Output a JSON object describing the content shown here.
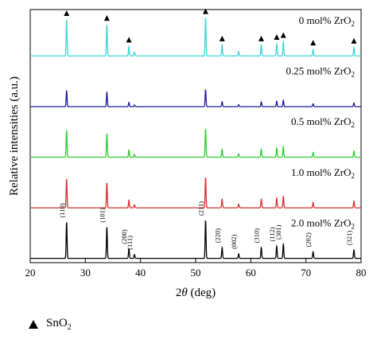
{
  "chart_data": {
    "type": "line",
    "xlabel": "2θ (deg)",
    "ylabel": "Relative intensities (a.u.)",
    "xlim": [
      20,
      80
    ],
    "xticks": [
      20,
      30,
      40,
      50,
      60,
      70,
      80
    ],
    "grid": false,
    "legend": {
      "label": "SnO",
      "label_sub": "2",
      "placement": "bottom-left",
      "marker": "filled triangle"
    },
    "peaks": [
      {
        "x": 26.6,
        "h": 0.95,
        "hkl": "(110)"
      },
      {
        "x": 33.9,
        "h": 0.82,
        "hkl": "(101)"
      },
      {
        "x": 37.9,
        "h": 0.25,
        "hkl": "(200)"
      },
      {
        "x": 38.9,
        "h": 0.1,
        "hkl": "(111)"
      },
      {
        "x": 51.8,
        "h": 1.0,
        "hkl": "(211)"
      },
      {
        "x": 54.8,
        "h": 0.28,
        "hkl": "(220)"
      },
      {
        "x": 57.8,
        "h": 0.12,
        "hkl": "(002)"
      },
      {
        "x": 61.9,
        "h": 0.28,
        "hkl": "(310)"
      },
      {
        "x": 64.7,
        "h": 0.32,
        "hkl": "(112)"
      },
      {
        "x": 65.9,
        "h": 0.37,
        "hkl": "(301)"
      },
      {
        "x": 71.3,
        "h": 0.17,
        "hkl": "(202)"
      },
      {
        "x": 78.7,
        "h": 0.22,
        "hkl": "(321)"
      }
    ],
    "series": [
      {
        "name_prefix": "0 mol% ZrO",
        "name_sub": "2",
        "color": "#3fd4d8",
        "scale": 1.0,
        "markers": true
      },
      {
        "name_prefix": "0.25 mol% ZrO",
        "name_sub": "2",
        "color": "#1a1a9c",
        "scale": 0.45,
        "markers": false
      },
      {
        "name_prefix": "0.5 mol% ZrO",
        "name_sub": "2",
        "color": "#2ecc2e",
        "scale": 0.75,
        "markers": false
      },
      {
        "name_prefix": "1.0 mol% ZrO",
        "name_sub": "2",
        "color": "#d93030",
        "scale": 0.8,
        "markers": false
      },
      {
        "name_prefix": "2.0 mol% ZrO",
        "name_sub": "2",
        "color": "#000000",
        "scale": 1.0,
        "markers": false,
        "hkl_labels": true
      }
    ]
  }
}
